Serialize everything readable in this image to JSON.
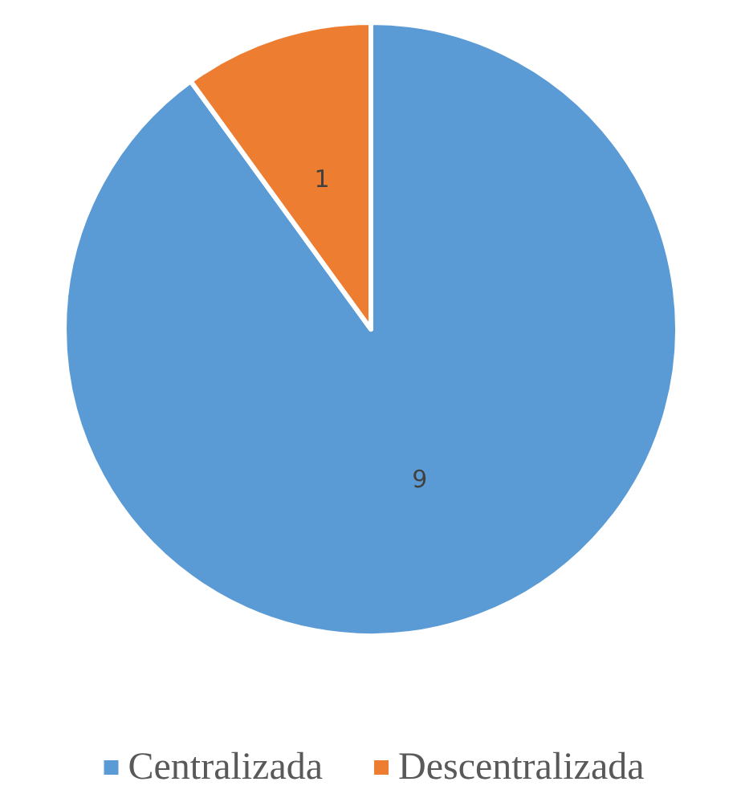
{
  "chart_data": {
    "type": "pie",
    "categories": [
      "Centralizada",
      "Descentralizada"
    ],
    "values": [
      9,
      1
    ],
    "colors": [
      "#5b9bd5",
      "#ed7d31"
    ],
    "data_labels": true,
    "legend": "bottom"
  }
}
